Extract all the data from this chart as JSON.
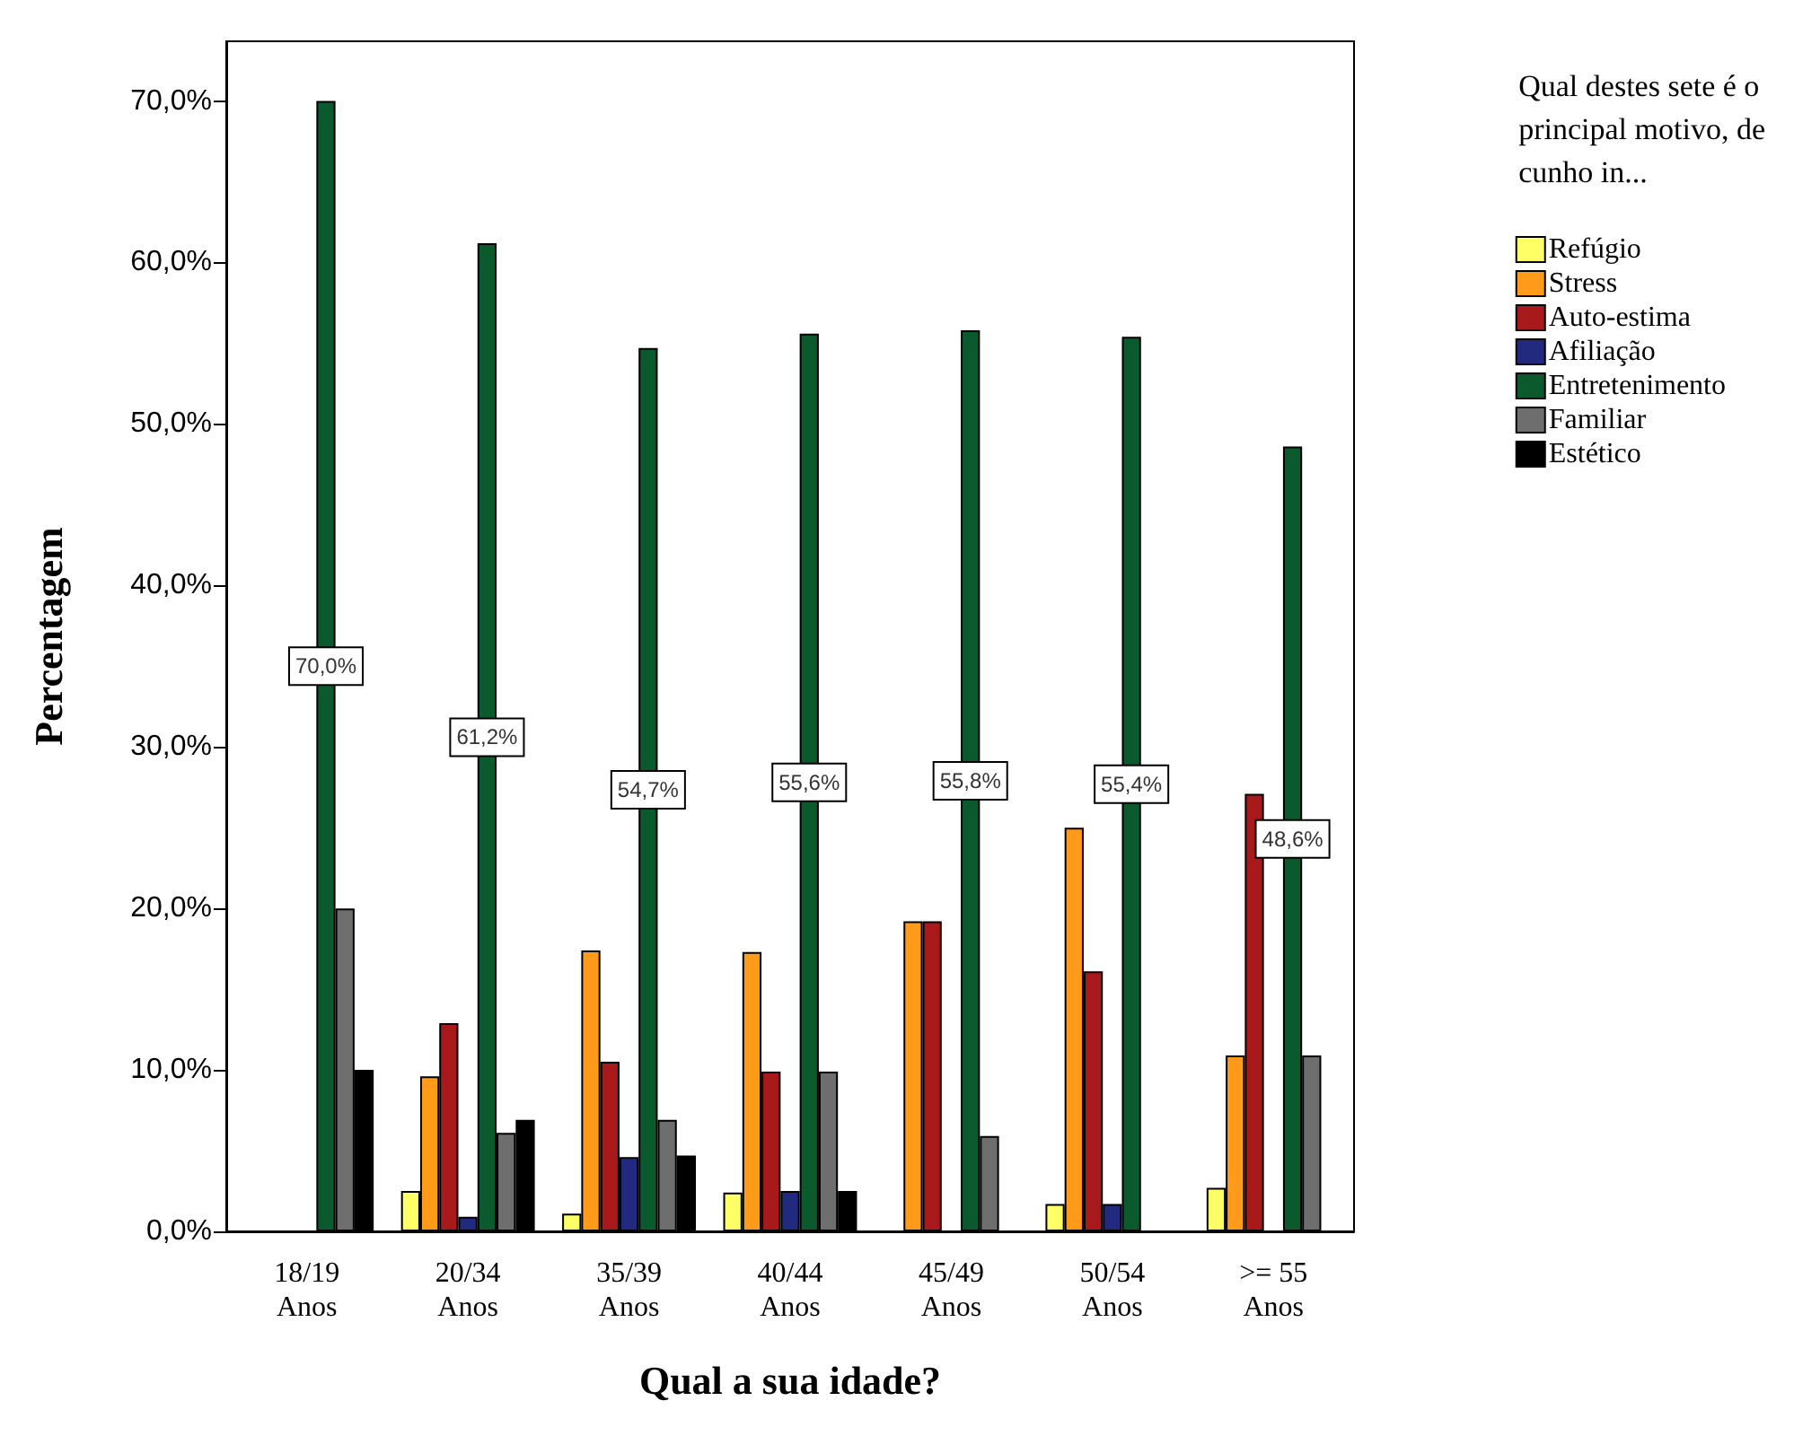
{
  "chart_data": {
    "type": "bar",
    "xlabel": "Qual a sua idade?",
    "ylabel": "Percentagem",
    "legend_title": "Qual destes sete é o principal motivo, de cunho in...",
    "legend": "right",
    "categories": [
      "18/19\nAnos",
      "20/34\nAnos",
      "35/39\nAnos",
      "40/44\nAnos",
      "45/49\nAnos",
      "50/54\nAnos",
      ">= 55\nAnos"
    ],
    "ylim": [
      0,
      73.7
    ],
    "yticks": [
      {
        "value": 0,
        "label": "0,0%"
      },
      {
        "value": 10,
        "label": "10,0%"
      },
      {
        "value": 20,
        "label": "20,0%"
      },
      {
        "value": 30,
        "label": "30,0%"
      },
      {
        "value": 40,
        "label": "40,0%"
      },
      {
        "value": 50,
        "label": "50,0%"
      },
      {
        "value": 60,
        "label": "60,0%"
      },
      {
        "value": 70,
        "label": "70,0%"
      }
    ],
    "series": [
      {
        "name": "Refúgio",
        "color": "#ffff66",
        "values": [
          0,
          2.5,
          1.1,
          2.4,
          0,
          1.7,
          2.7
        ]
      },
      {
        "name": "Stress",
        "color": "#ff9a1a",
        "values": [
          0,
          9.6,
          17.4,
          17.3,
          19.2,
          25.0,
          10.9
        ]
      },
      {
        "name": "Auto-estima",
        "color": "#a8191c",
        "values": [
          0,
          12.9,
          10.5,
          9.9,
          19.2,
          16.1,
          27.1
        ]
      },
      {
        "name": "Afiliação",
        "color": "#222a80",
        "values": [
          0,
          0.9,
          4.6,
          2.5,
          0,
          1.7,
          0
        ]
      },
      {
        "name": "Entretenimento",
        "color": "#0a5a2e",
        "values": [
          70.0,
          61.2,
          54.7,
          55.6,
          55.8,
          55.4,
          48.6
        ],
        "value_labels": [
          "70,0%",
          "61,2%",
          "54,7%",
          "55,6%",
          "55,8%",
          "55,4%",
          "48,6%"
        ]
      },
      {
        "name": "Familiar",
        "color": "#6e6e6e",
        "values": [
          20.0,
          6.1,
          6.9,
          9.9,
          5.9,
          0,
          10.9
        ]
      },
      {
        "name": "Estético",
        "color": "#000000",
        "values": [
          10.0,
          6.9,
          4.7,
          2.5,
          0,
          0,
          0
        ]
      }
    ]
  }
}
